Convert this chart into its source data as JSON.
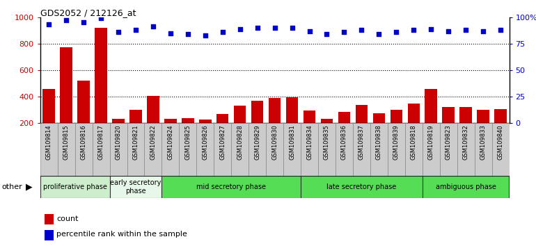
{
  "title": "GDS2052 / 212126_at",
  "samples": [
    "GSM109814",
    "GSM109815",
    "GSM109816",
    "GSM109817",
    "GSM109820",
    "GSM109821",
    "GSM109822",
    "GSM109824",
    "GSM109825",
    "GSM109826",
    "GSM109827",
    "GSM109828",
    "GSM109829",
    "GSM109830",
    "GSM109831",
    "GSM109834",
    "GSM109835",
    "GSM109836",
    "GSM109837",
    "GSM109838",
    "GSM109839",
    "GSM109818",
    "GSM109819",
    "GSM109823",
    "GSM109832",
    "GSM109833",
    "GSM109840"
  ],
  "counts": [
    460,
    775,
    520,
    920,
    230,
    300,
    405,
    230,
    235,
    225,
    270,
    330,
    370,
    390,
    395,
    295,
    230,
    285,
    335,
    275,
    300,
    345,
    455,
    320,
    320,
    300,
    305
  ],
  "percentile": [
    93,
    97,
    95,
    99,
    86,
    88,
    91,
    85,
    84,
    83,
    86,
    89,
    90,
    90,
    90,
    87,
    84,
    86,
    88,
    84,
    86,
    88,
    89,
    87,
    88,
    87,
    88
  ],
  "ylim_left": [
    200,
    1000
  ],
  "ylim_right": [
    0,
    100
  ],
  "bar_color": "#cc0000",
  "dot_color": "#0000cc",
  "phases": [
    {
      "label": "proliferative phase",
      "start": 0,
      "end": 4,
      "color": "#cceecc"
    },
    {
      "label": "early secretory\nphase",
      "start": 4,
      "end": 7,
      "color": "#e8f8e8"
    },
    {
      "label": "mid secretory phase",
      "start": 7,
      "end": 15,
      "color": "#55dd55"
    },
    {
      "label": "late secretory phase",
      "start": 15,
      "end": 22,
      "color": "#55dd55"
    },
    {
      "label": "ambiguous phase",
      "start": 22,
      "end": 27,
      "color": "#55dd55"
    }
  ],
  "legend_count": "count",
  "legend_pct": "percentile rank within the sample",
  "bar_width": 0.7,
  "tick_bg_color": "#cccccc",
  "phase_border_color": "#333333"
}
